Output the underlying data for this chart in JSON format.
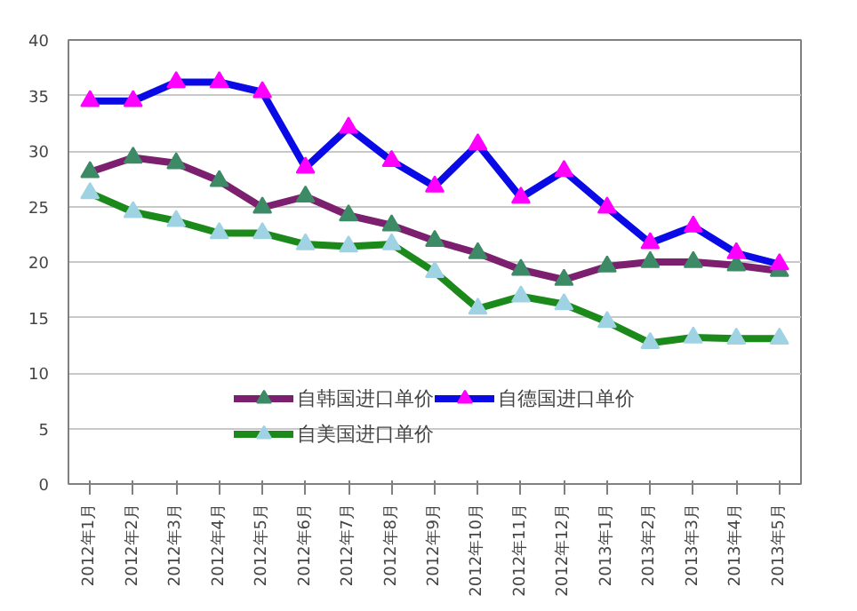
{
  "chart_data": {
    "type": "line",
    "categories": [
      "2012年1月",
      "2012年2月",
      "2012年3月",
      "2012年4月",
      "2012年5月",
      "2012年6月",
      "2012年7月",
      "2012年8月",
      "2012年9月",
      "2012年10月",
      "2012年11月",
      "2012年12月",
      "2013年1月",
      "2013年2月",
      "2013年3月",
      "2013年4月",
      "2013年5月"
    ],
    "series": [
      {
        "name": "自韩国进口单价",
        "color": "#7b1f6e",
        "colors": [
          "#3d8a66",
          "#3d8a66",
          "#3d8a66",
          "#3d8a66",
          "#3d8a66",
          "#3d8a66",
          "#3d8a66",
          "#3d8a66",
          "#3d8a66",
          "#3d8a66",
          "#3d8a66",
          "#3d8a66",
          "#3d8a66",
          "#3d8a66",
          "#3d8a66",
          "#3d8a66",
          "#3d8a66"
        ],
        "values": [
          28.1,
          29.4,
          28.9,
          27.3,
          24.9,
          25.9,
          24.2,
          23.3,
          21.9,
          20.8,
          19.3,
          18.4,
          19.6,
          20.0,
          20.0,
          19.7,
          19.2
        ]
      },
      {
        "name": "自美国进口单价",
        "color": "#1b8a1b",
        "colors": [
          "#9fd3e3",
          "#9fd3e3",
          "#9fd3e3",
          "#9fd3e3",
          "#9fd3e3",
          "#9fd3e3",
          "#9fd3e3",
          "#9fd3e3",
          "#9fd3e3",
          "#9fd3e3",
          "#9fd3e3",
          "#9fd3e3",
          "#9fd3e3",
          "#9fd3e3",
          "#9fd3e3",
          "#9fd3e3",
          "#9fd3e3"
        ],
        "values": [
          26.2,
          24.5,
          23.7,
          22.6,
          22.6,
          21.6,
          21.4,
          21.6,
          19.1,
          15.8,
          16.9,
          16.2,
          14.6,
          12.7,
          13.2,
          13.1,
          13.1
        ]
      },
      {
        "name": "自德国进口单价",
        "color": "#0a0ae6",
        "colors": [
          "#ff00ff",
          "#ff00ff",
          "#ff00ff",
          "#ff00ff",
          "#ff00ff",
          "#ff00ff",
          "#ff00ff",
          "#ff00ff",
          "#ff00ff",
          "#ff00ff",
          "#ff00ff",
          "#ff00ff",
          "#ff00ff",
          "#ff00ff",
          "#ff00ff",
          "#ff00ff",
          "#ff00ff"
        ],
        "values": [
          34.5,
          34.5,
          36.2,
          36.2,
          35.3,
          28.5,
          32.1,
          29.1,
          26.8,
          30.6,
          25.8,
          28.2,
          24.9,
          21.7,
          23.2,
          20.8,
          19.8
        ]
      }
    ],
    "ylim": [
      0,
      40
    ],
    "yticks": [
      0,
      5,
      10,
      15,
      20,
      25,
      30,
      35,
      40
    ],
    "grid": "y",
    "legend": "bottom",
    "marker": "triangle",
    "line_style": "solid"
  }
}
